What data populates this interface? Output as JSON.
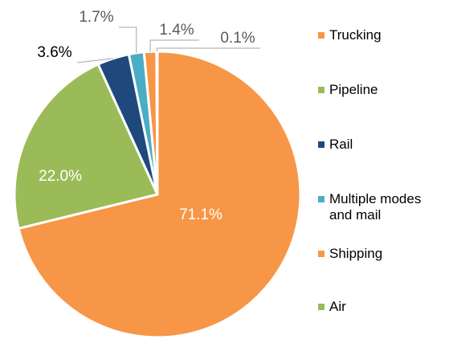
{
  "chart_data": {
    "type": "pie",
    "categories": [
      "Trucking",
      "Pipeline",
      "Rail",
      "Multiple modes and mail",
      "Shipping",
      "Air"
    ],
    "values": [
      71.1,
      22.0,
      3.6,
      1.7,
      1.4,
      0.1
    ],
    "value_labels": [
      "71.1%",
      "22.0%",
      "3.6%",
      "1.7%",
      "1.4%",
      "0.1%"
    ],
    "colors": [
      "#f79646",
      "#9bbb59",
      "#1f497d",
      "#4bacc6",
      "#f79646",
      "#9bbb59"
    ],
    "legend": "right"
  }
}
